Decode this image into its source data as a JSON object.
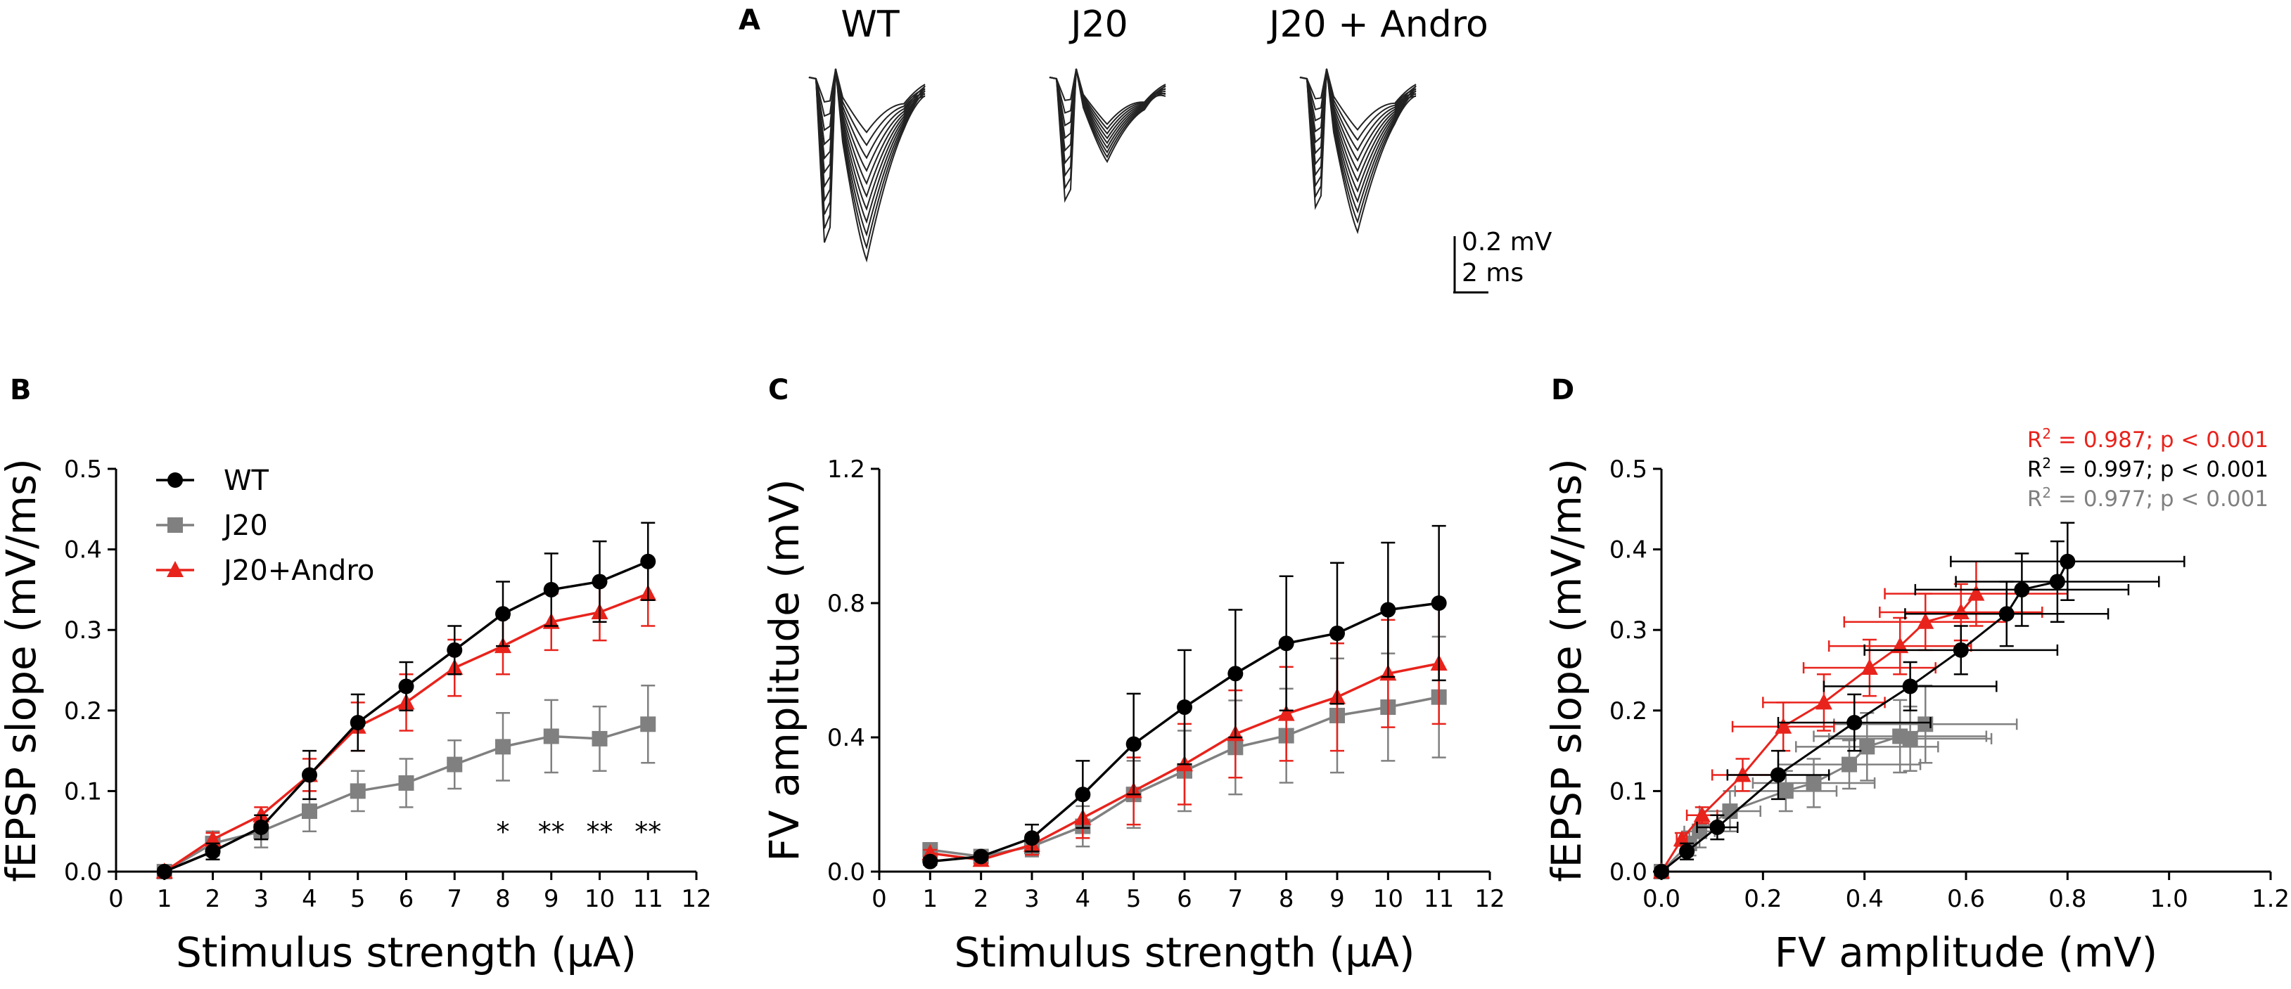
{
  "panel_letters": {
    "a": "A",
    "b": "B",
    "c": "C",
    "d": "D"
  },
  "traces": {
    "labels": [
      "WT",
      "J20",
      "J20 + Andro"
    ],
    "scale_v": "0.2 mV",
    "scale_t": "2 ms"
  },
  "colors": {
    "wt": "#000000",
    "j20": "#808080",
    "andro": "#e8231c",
    "axis": "#000000"
  },
  "chart_data": [
    {
      "panel": "B",
      "type": "line",
      "xlabel": "Stimulus strength (µA)",
      "ylabel": "fEPSP slope (mV/ms)",
      "xlim": [
        0,
        12
      ],
      "ylim": [
        0,
        0.5
      ],
      "xticks": [
        "0",
        "1",
        "2",
        "3",
        "4",
        "5",
        "6",
        "7",
        "8",
        "9",
        "10",
        "11",
        "12"
      ],
      "yticks": [
        "0.0",
        "0.1",
        "0.2",
        "0.3",
        "0.4",
        "0.5"
      ],
      "legend": [
        "WT",
        "J20",
        "J20+Andro"
      ],
      "legend_position": "top-left",
      "x": [
        1,
        2,
        3,
        4,
        5,
        6,
        7,
        8,
        9,
        10,
        11
      ],
      "series": [
        {
          "name": "WT",
          "marker": "circle",
          "values": [
            0.0,
            0.025,
            0.055,
            0.12,
            0.185,
            0.23,
            0.275,
            0.32,
            0.35,
            0.36,
            0.385
          ],
          "errors": [
            0.004,
            0.01,
            0.015,
            0.03,
            0.035,
            0.03,
            0.03,
            0.04,
            0.045,
            0.05,
            0.048
          ]
        },
        {
          "name": "J20",
          "marker": "square",
          "values": [
            0.0,
            0.035,
            0.05,
            0.075,
            0.1,
            0.11,
            0.133,
            0.155,
            0.168,
            0.165,
            0.183
          ],
          "errors": [
            0.004,
            0.015,
            0.02,
            0.025,
            0.025,
            0.03,
            0.03,
            0.042,
            0.045,
            0.04,
            0.048
          ]
        },
        {
          "name": "J20+Andro",
          "marker": "triangle",
          "values": [
            0.0,
            0.04,
            0.07,
            0.12,
            0.18,
            0.21,
            0.253,
            0.28,
            0.31,
            0.322,
            0.345
          ],
          "errors": [
            0.004,
            0.008,
            0.01,
            0.02,
            0.03,
            0.035,
            0.035,
            0.035,
            0.035,
            0.035,
            0.04
          ]
        }
      ],
      "annotations": [
        {
          "x": 8,
          "y": 0.08,
          "text": "*"
        },
        {
          "x": 9,
          "y": 0.08,
          "text": "**"
        },
        {
          "x": 10,
          "y": 0.08,
          "text": "**"
        },
        {
          "x": 11,
          "y": 0.08,
          "text": "**"
        }
      ]
    },
    {
      "panel": "C",
      "type": "line",
      "xlabel": "Stimulus strength (µA)",
      "ylabel": "FV amplitude (mV)",
      "xlim": [
        0,
        12
      ],
      "ylim": [
        0,
        1.2
      ],
      "xticks": [
        "0",
        "1",
        "2",
        "3",
        "4",
        "5",
        "6",
        "7",
        "8",
        "9",
        "10",
        "11",
        "12"
      ],
      "yticks": [
        "0.0",
        "0.4",
        "0.8",
        "1.2"
      ],
      "x": [
        1,
        2,
        3,
        4,
        5,
        6,
        7,
        8,
        9,
        10,
        11
      ],
      "series": [
        {
          "name": "WT",
          "marker": "circle",
          "values": [
            0.03,
            0.045,
            0.1,
            0.23,
            0.38,
            0.49,
            0.59,
            0.68,
            0.71,
            0.78,
            0.8
          ],
          "errors": [
            0.01,
            0.01,
            0.04,
            0.1,
            0.15,
            0.17,
            0.19,
            0.2,
            0.21,
            0.2,
            0.23
          ]
        },
        {
          "name": "J20",
          "marker": "square",
          "values": [
            0.065,
            0.045,
            0.075,
            0.135,
            0.23,
            0.3,
            0.37,
            0.405,
            0.465,
            0.49,
            0.52
          ],
          "errors": [
            0.01,
            0.01,
            0.03,
            0.06,
            0.1,
            0.12,
            0.14,
            0.14,
            0.17,
            0.16,
            0.18
          ]
        },
        {
          "name": "J20+Andro",
          "marker": "triangle",
          "values": [
            0.055,
            0.035,
            0.08,
            0.16,
            0.24,
            0.32,
            0.41,
            0.47,
            0.52,
            0.59,
            0.62
          ],
          "errors": [
            0.01,
            0.01,
            0.03,
            0.06,
            0.1,
            0.12,
            0.13,
            0.14,
            0.16,
            0.16,
            0.18
          ]
        }
      ]
    },
    {
      "panel": "D",
      "type": "scatter",
      "xlabel": "FV amplitude (mV)",
      "ylabel": "fEPSP slope (mV/ms)",
      "xlim": [
        0,
        1.2
      ],
      "ylim": [
        0,
        0.5
      ],
      "xticks": [
        "0.0",
        "0.2",
        "0.4",
        "0.6",
        "0.8",
        "1.0",
        "1.2"
      ],
      "yticks": [
        "0.0",
        "0.1",
        "0.2",
        "0.3",
        "0.4",
        "0.5"
      ],
      "stats": [
        {
          "series": "J20+Andro",
          "prefix": "R",
          "sup": "2",
          "text": " = 0.987; p < 0.001"
        },
        {
          "series": "WT",
          "prefix": "R",
          "sup": "2",
          "text": " = 0.997; p < 0.001"
        },
        {
          "series": "J20",
          "prefix": "R",
          "sup": "2",
          "text": " = 0.977; p < 0.001"
        }
      ],
      "series": [
        {
          "name": "WT",
          "marker": "circle",
          "x": [
            0.0,
            0.05,
            0.11,
            0.23,
            0.38,
            0.49,
            0.59,
            0.68,
            0.71,
            0.78,
            0.8
          ],
          "y": [
            0.0,
            0.025,
            0.055,
            0.12,
            0.185,
            0.23,
            0.275,
            0.32,
            0.35,
            0.36,
            0.385
          ],
          "xerr": [
            0.01,
            0.01,
            0.04,
            0.1,
            0.15,
            0.17,
            0.19,
            0.2,
            0.21,
            0.2,
            0.23
          ],
          "yerr": [
            0.004,
            0.01,
            0.015,
            0.03,
            0.035,
            0.03,
            0.03,
            0.04,
            0.045,
            0.05,
            0.048
          ]
        },
        {
          "name": "J20",
          "marker": "square",
          "x": [
            0.0,
            0.055,
            0.075,
            0.135,
            0.245,
            0.3,
            0.37,
            0.405,
            0.47,
            0.49,
            0.52
          ],
          "y": [
            0.0,
            0.035,
            0.05,
            0.075,
            0.1,
            0.11,
            0.133,
            0.155,
            0.168,
            0.165,
            0.183
          ],
          "xerr": [
            0.01,
            0.01,
            0.03,
            0.06,
            0.1,
            0.12,
            0.14,
            0.14,
            0.17,
            0.16,
            0.18
          ],
          "yerr": [
            0.004,
            0.015,
            0.02,
            0.025,
            0.025,
            0.03,
            0.03,
            0.042,
            0.045,
            0.04,
            0.048
          ]
        },
        {
          "name": "J20+Andro",
          "marker": "triangle",
          "x": [
            0.0,
            0.04,
            0.08,
            0.16,
            0.24,
            0.32,
            0.41,
            0.47,
            0.52,
            0.59,
            0.62
          ],
          "y": [
            0.0,
            0.04,
            0.07,
            0.12,
            0.18,
            0.21,
            0.253,
            0.28,
            0.31,
            0.322,
            0.345
          ],
          "xerr": [
            0.01,
            0.01,
            0.03,
            0.06,
            0.1,
            0.12,
            0.13,
            0.14,
            0.16,
            0.16,
            0.18
          ],
          "yerr": [
            0.004,
            0.008,
            0.01,
            0.02,
            0.03,
            0.035,
            0.035,
            0.035,
            0.035,
            0.035,
            0.04
          ]
        }
      ]
    }
  ]
}
